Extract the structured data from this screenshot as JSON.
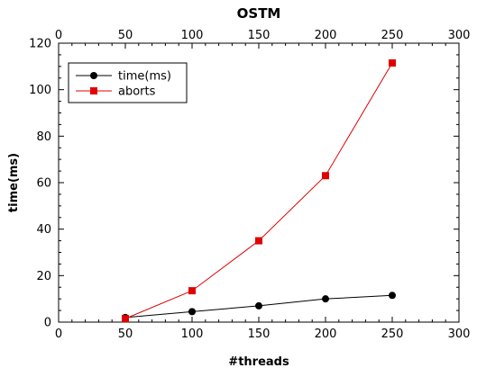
{
  "chart_data": {
    "type": "line",
    "title": "OSTM",
    "xlabel": "#threads",
    "ylabel": "time(ms)",
    "xlim": [
      0,
      300
    ],
    "ylim": [
      0,
      120
    ],
    "x_ticks": [
      0,
      50,
      100,
      150,
      200,
      250,
      300
    ],
    "y_ticks": [
      0,
      20,
      40,
      60,
      80,
      100,
      120
    ],
    "top_axis_ticks": true,
    "grid": false,
    "legend_position": "top-left",
    "series": [
      {
        "name": "time(ms)",
        "color": "#000000",
        "marker": "circle",
        "x": [
          50,
          100,
          150,
          200,
          250
        ],
        "y": [
          2,
          4.5,
          7,
          10,
          11.5
        ]
      },
      {
        "name": "aborts",
        "color": "#e00000",
        "marker": "square",
        "x": [
          50,
          100,
          150,
          200,
          250
        ],
        "y": [
          1.5,
          13.5,
          35,
          63,
          111.5
        ]
      }
    ]
  }
}
